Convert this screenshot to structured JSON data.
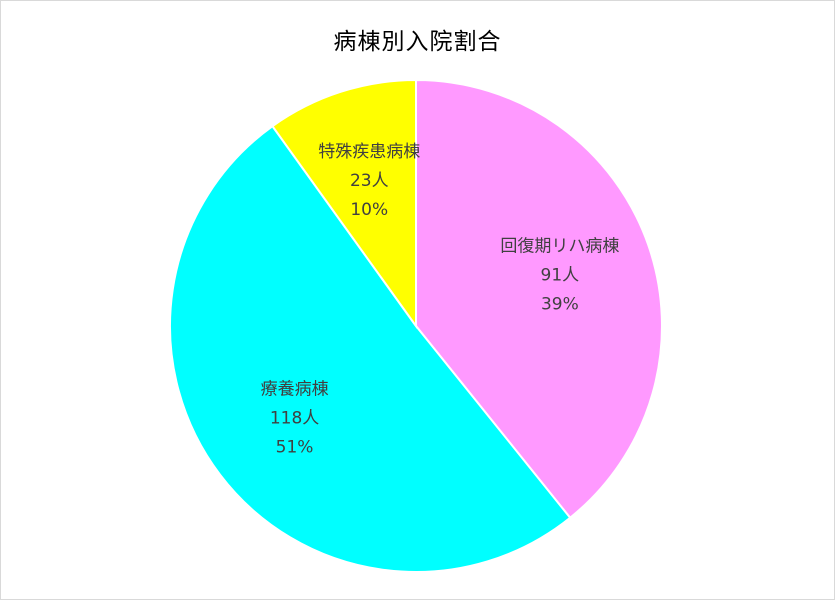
{
  "chart_data": {
    "type": "pie",
    "title": "病棟別入院割合",
    "slices": [
      {
        "label": "回復期リハ病棟",
        "value": 91,
        "count_label": "91人",
        "percent_label": "39%",
        "color": "#ff99ff"
      },
      {
        "label": "療養病棟",
        "value": 118,
        "count_label": "118人",
        "percent_label": "51%",
        "color": "#00ffff"
      },
      {
        "label": "特殊疾患病棟",
        "value": 23,
        "count_label": "23人",
        "percent_label": "10%",
        "color": "#ffff00"
      }
    ],
    "start_angle": "12 o'clock",
    "direction": "clockwise",
    "slice_border_color": "#ffffff",
    "legend": "none"
  }
}
